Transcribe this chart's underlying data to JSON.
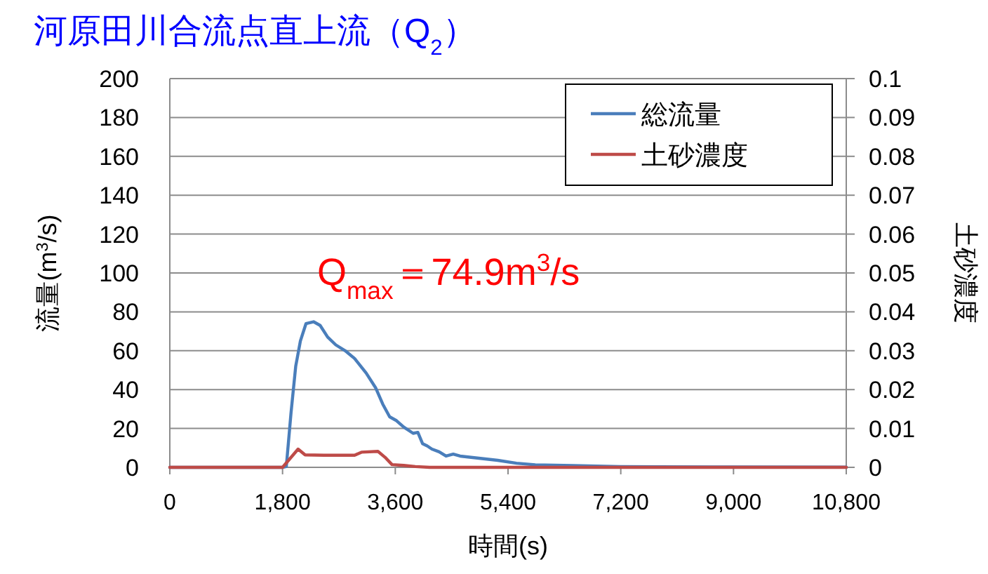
{
  "chart_data": {
    "type": "line",
    "title": "河原田川合流点直上流（Q$_{2}$）",
    "xlabel": "時間(s)",
    "ylabel": "流量(m$^{3}$/s)",
    "y2label": "土砂濃度",
    "annotations": [
      "Q$_{max}$＝74.9m$^{3}$/s"
    ],
    "xlim": [
      0,
      10800
    ],
    "xticks": [
      0,
      {
        "value": 1800,
        "label": "1,800"
      },
      {
        "value": 3600,
        "label": "3,600"
      },
      {
        "value": 5400,
        "label": "5,400"
      },
      {
        "value": 7200,
        "label": "7,200"
      },
      {
        "value": 9000,
        "label": "9,000"
      },
      {
        "value": 10800,
        "label": "10,800"
      }
    ],
    "ylim": [
      0,
      200
    ],
    "yticks": [
      0,
      20,
      40,
      60,
      80,
      100,
      120,
      140,
      160,
      180,
      200
    ],
    "y2lim": [
      0,
      0.1
    ],
    "y2ticks": [
      0,
      0.01,
      0.02,
      0.03,
      0.04,
      0.05,
      0.06,
      0.07,
      0.08,
      0.09,
      0.1
    ],
    "grid": "y",
    "legend": "top right",
    "series": [
      {
        "name": "総流量",
        "color": "#4a7ebb",
        "x": [
          0,
          1800,
          1860,
          1935,
          2010,
          2085,
          2175,
          2295,
          2400,
          2520,
          2650,
          2800,
          2950,
          3135,
          3285,
          3400,
          3510,
          3620,
          3735,
          3885,
          3960,
          4035,
          4110,
          4185,
          4300,
          4410,
          4525,
          4635,
          4935,
          5235,
          5535,
          5835,
          6435,
          7185,
          7800,
          9000,
          10800
        ],
        "values": [
          0,
          0,
          0.4,
          28,
          52,
          65,
          74,
          74.9,
          73,
          67,
          63,
          60,
          56,
          48.5,
          41,
          32.5,
          26,
          24,
          20.7,
          17.5,
          18,
          12.2,
          11,
          9.4,
          8,
          5.8,
          6.8,
          5.8,
          4.7,
          3.6,
          2.1,
          1.3,
          0.9,
          0.4,
          0.3,
          0.2,
          0.1
        ]
      },
      {
        "name": "土砂濃度",
        "color": "#be4b48",
        "axis": "y2",
        "x": [
          0,
          1800,
          2048,
          2160,
          2460,
          2950,
          3060,
          3323,
          3435,
          3548,
          3735,
          3920,
          4148,
          10800
        ],
        "values": [
          0,
          0,
          0.0047,
          0.0032,
          0.0031,
          0.0031,
          0.0039,
          0.0041,
          0.0026,
          0.0007,
          0.0005,
          0.0002,
          0,
          0
        ]
      }
    ]
  }
}
